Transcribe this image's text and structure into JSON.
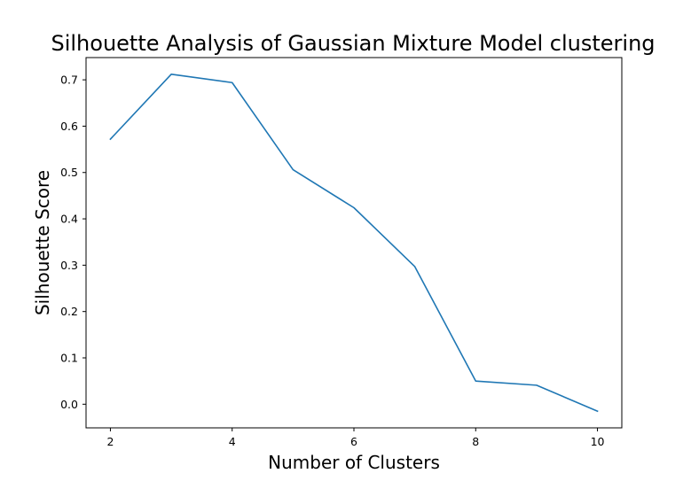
{
  "chart_data": {
    "type": "line",
    "title": "Silhouette Analysis of Gaussian Mixture Model clustering",
    "xlabel": "Number of Clusters",
    "ylabel": "Silhouette Score",
    "x": [
      2,
      3,
      4,
      5,
      6,
      7,
      8,
      9,
      10
    ],
    "series": [
      {
        "values": [
          0.572,
          0.712,
          0.694,
          0.506,
          0.424,
          0.297,
          0.05,
          0.041,
          -0.015
        ]
      }
    ],
    "xticks": [
      2,
      4,
      6,
      8,
      10
    ],
    "xtick_labels": [
      "2",
      "4",
      "6",
      "8",
      "10"
    ],
    "yticks": [
      0.0,
      0.1,
      0.2,
      0.3,
      0.4,
      0.5,
      0.6,
      0.7
    ],
    "ytick_labels": [
      "0.0",
      "0.1",
      "0.2",
      "0.3",
      "0.4",
      "0.5",
      "0.6",
      "0.7"
    ],
    "xlim": [
      1.6,
      10.4
    ],
    "ylim": [
      -0.051,
      0.748
    ],
    "grid": false,
    "line_color": "#1f77b4"
  }
}
